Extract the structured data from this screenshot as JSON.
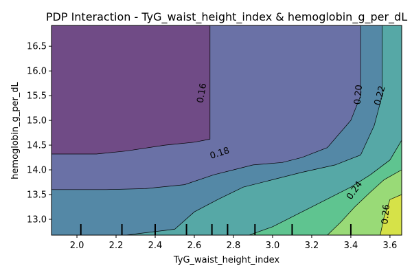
{
  "chart_data": {
    "type": "contour",
    "title": "PDP Interaction - TyG_waist_height_index & hemoglobin_g_per_dL",
    "xlabel": "TyG_waist_height_index",
    "ylabel": "hemoglobin_g_per_dL",
    "xlim": [
      1.87,
      3.66
    ],
    "ylim": [
      12.68,
      16.92
    ],
    "x_ticks": [
      {
        "value": 2.0,
        "label": "2.0"
      },
      {
        "value": 2.2,
        "label": "2.2"
      },
      {
        "value": 2.4,
        "label": "2.4"
      },
      {
        "value": 2.6,
        "label": "2.6"
      },
      {
        "value": 2.8,
        "label": "2.8"
      },
      {
        "value": 3.0,
        "label": "3.0"
      },
      {
        "value": 3.2,
        "label": "3.2"
      },
      {
        "value": 3.4,
        "label": "3.4"
      },
      {
        "value": 3.6,
        "label": "3.6"
      }
    ],
    "y_ticks": [
      {
        "value": 13.0,
        "label": "13.0"
      },
      {
        "value": 13.5,
        "label": "13.5"
      },
      {
        "value": 14.0,
        "label": "14.0"
      },
      {
        "value": 14.5,
        "label": "14.5"
      },
      {
        "value": 15.0,
        "label": "15.0"
      },
      {
        "value": 15.5,
        "label": "15.5"
      },
      {
        "value": 16.0,
        "label": "16.0"
      },
      {
        "value": 16.5,
        "label": "16.5"
      }
    ],
    "levels": [
      {
        "name": "< 0.16",
        "color": "#704b86"
      },
      {
        "name": "0.16 - 0.18",
        "color": "#6a71a6"
      },
      {
        "name": "0.18 - 0.20",
        "color": "#5488a6"
      },
      {
        "name": "0.20 - 0.22",
        "color": "#56a8a6"
      },
      {
        "name": "0.22 - 0.24",
        "color": "#5fc490"
      },
      {
        "name": "0.24 - 0.26",
        "color": "#99da77"
      },
      {
        "name": "> 0.26",
        "color": "#d6e248"
      }
    ],
    "regions": [
      {
        "level": 1,
        "points": [
          [
            1.87,
            14.32
          ],
          [
            2.1,
            14.32
          ],
          [
            2.25,
            14.38
          ],
          [
            2.45,
            14.5
          ],
          [
            2.6,
            14.56
          ],
          [
            2.68,
            14.62
          ],
          [
            2.68,
            16.92
          ]
        ]
      },
      {
        "level": 2,
        "points": [
          [
            1.87,
            13.6
          ],
          [
            2.15,
            13.6
          ],
          [
            2.35,
            13.62
          ],
          [
            2.55,
            13.7
          ],
          [
            2.7,
            13.9
          ],
          [
            2.82,
            14.02
          ],
          [
            2.9,
            14.1
          ],
          [
            3.05,
            14.15
          ],
          [
            3.15,
            14.25
          ],
          [
            3.28,
            14.45
          ],
          [
            3.4,
            15.0
          ],
          [
            3.45,
            15.5
          ],
          [
            3.45,
            16.92
          ]
        ]
      },
      {
        "level": 3,
        "points": [
          [
            2.25,
            12.68
          ],
          [
            2.5,
            12.8
          ],
          [
            2.6,
            13.15
          ],
          [
            2.72,
            13.4
          ],
          [
            2.85,
            13.65
          ],
          [
            3.0,
            13.8
          ],
          [
            3.15,
            13.95
          ],
          [
            3.32,
            14.1
          ],
          [
            3.45,
            14.3
          ],
          [
            3.52,
            14.9
          ],
          [
            3.56,
            15.5
          ],
          [
            3.56,
            16.92
          ]
        ]
      },
      {
        "level": 4,
        "points": [
          [
            2.88,
            12.68
          ],
          [
            3.0,
            12.85
          ],
          [
            3.1,
            13.05
          ],
          [
            3.25,
            13.35
          ],
          [
            3.4,
            13.65
          ],
          [
            3.5,
            13.9
          ],
          [
            3.6,
            14.2
          ],
          [
            3.66,
            14.6
          ]
        ]
      },
      {
        "level": 5,
        "points": [
          [
            3.28,
            12.68
          ],
          [
            3.35,
            12.95
          ],
          [
            3.42,
            13.25
          ],
          [
            3.5,
            13.55
          ],
          [
            3.57,
            13.8
          ],
          [
            3.66,
            14.0
          ]
        ]
      },
      {
        "level": 6,
        "points": [
          [
            3.55,
            12.68
          ],
          [
            3.57,
            13.05
          ],
          [
            3.6,
            13.4
          ],
          [
            3.66,
            13.5
          ]
        ]
      }
    ],
    "contour_labels": [
      {
        "label": "0.16",
        "x": 2.64,
        "y": 15.55,
        "angle": -80
      },
      {
        "label": "0.18",
        "x": 2.73,
        "y": 14.33,
        "angle": -18
      },
      {
        "label": "0.20",
        "x": 3.44,
        "y": 15.52,
        "angle": -85
      },
      {
        "label": "0.22",
        "x": 3.55,
        "y": 15.5,
        "angle": -75
      },
      {
        "label": "0.24",
        "x": 3.42,
        "y": 13.58,
        "angle": -55
      },
      {
        "label": "0.26",
        "x": 3.58,
        "y": 13.1,
        "angle": -85
      }
    ],
    "rug_x": [
      2.02,
      2.23,
      2.4,
      2.56,
      2.69,
      2.77,
      2.91,
      3.1,
      3.4
    ]
  }
}
